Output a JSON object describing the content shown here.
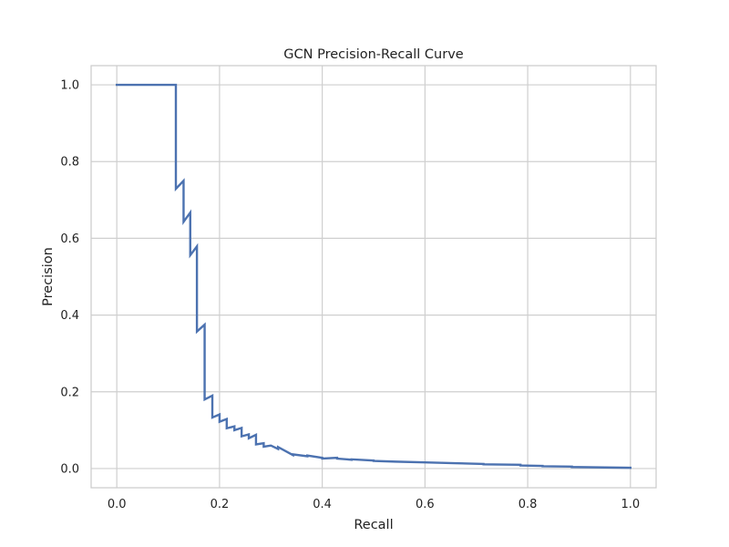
{
  "chart_data": {
    "type": "line",
    "title": "GCN Precision-Recall Curve",
    "xlabel": "Recall",
    "ylabel": "Precision",
    "xlim": [
      -0.05,
      1.05
    ],
    "ylim": [
      -0.05,
      1.05
    ],
    "xticks": [
      0.0,
      0.2,
      0.4,
      0.6,
      0.8,
      1.0
    ],
    "yticks": [
      0.0,
      0.2,
      0.4,
      0.6,
      0.8,
      1.0
    ],
    "xtick_labels": [
      "0.0",
      "0.2",
      "0.4",
      "0.6",
      "0.8",
      "1.0"
    ],
    "ytick_labels": [
      "0.0",
      "0.2",
      "0.4",
      "0.6",
      "0.8",
      "1.0"
    ],
    "grid": true,
    "legend": false,
    "line_color": "#4c72b0",
    "series": [
      {
        "x": [
          0.0,
          0.115,
          0.115,
          0.115,
          0.13,
          0.13,
          0.13,
          0.143,
          0.143,
          0.143,
          0.156,
          0.156,
          0.156,
          0.171,
          0.171,
          0.171,
          0.186,
          0.186,
          0.186,
          0.2,
          0.2,
          0.2,
          0.214,
          0.214,
          0.214,
          0.229,
          0.229,
          0.229,
          0.243,
          0.243,
          0.243,
          0.257,
          0.257,
          0.257,
          0.271,
          0.271,
          0.271,
          0.286,
          0.286,
          0.3,
          0.3,
          0.314,
          0.314,
          0.343,
          0.343,
          0.371,
          0.371,
          0.4,
          0.4,
          0.429,
          0.429,
          0.457,
          0.457,
          0.5,
          0.5,
          0.543,
          0.543,
          0.6,
          0.6,
          0.657,
          0.657,
          0.714,
          0.714,
          0.786,
          0.786,
          0.829,
          0.829,
          0.886,
          0.886,
          1.0
        ],
        "y": [
          1.0,
          1.0,
          0.729,
          0.729,
          0.75,
          0.643,
          0.643,
          0.667,
          0.556,
          0.556,
          0.579,
          0.357,
          0.357,
          0.375,
          0.18,
          0.18,
          0.19,
          0.133,
          0.133,
          0.141,
          0.122,
          0.122,
          0.129,
          0.105,
          0.105,
          0.11,
          0.1,
          0.1,
          0.106,
          0.084,
          0.084,
          0.089,
          0.079,
          0.079,
          0.088,
          0.063,
          0.063,
          0.066,
          0.057,
          0.06,
          0.06,
          0.051,
          0.056,
          0.035,
          0.037,
          0.032,
          0.034,
          0.028,
          0.026,
          0.028,
          0.026,
          0.023,
          0.024,
          0.021,
          0.02,
          0.018,
          0.018,
          0.016,
          0.016,
          0.014,
          0.014,
          0.012,
          0.011,
          0.01,
          0.008,
          0.007,
          0.006,
          0.005,
          0.004,
          0.002
        ]
      }
    ]
  }
}
